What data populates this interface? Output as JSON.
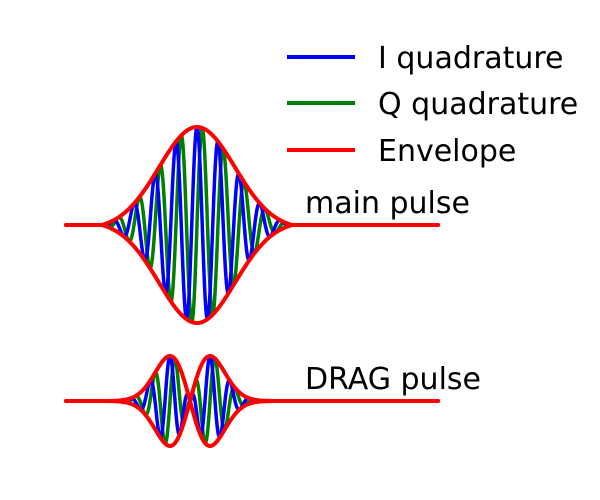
{
  "legend": {
    "entries": [
      {
        "label": "I quadrature",
        "color": "#0000ff"
      },
      {
        "label": "Q quadrature",
        "color": "#008000"
      },
      {
        "label": "Envelope",
        "color": "#ff0000"
      }
    ]
  },
  "pulses": [
    {
      "id": "main",
      "label": "main pulse",
      "shape": "gaussian"
    },
    {
      "id": "drag",
      "label": "DRAG pulse",
      "shape": "gaussian-derivative"
    }
  ]
}
